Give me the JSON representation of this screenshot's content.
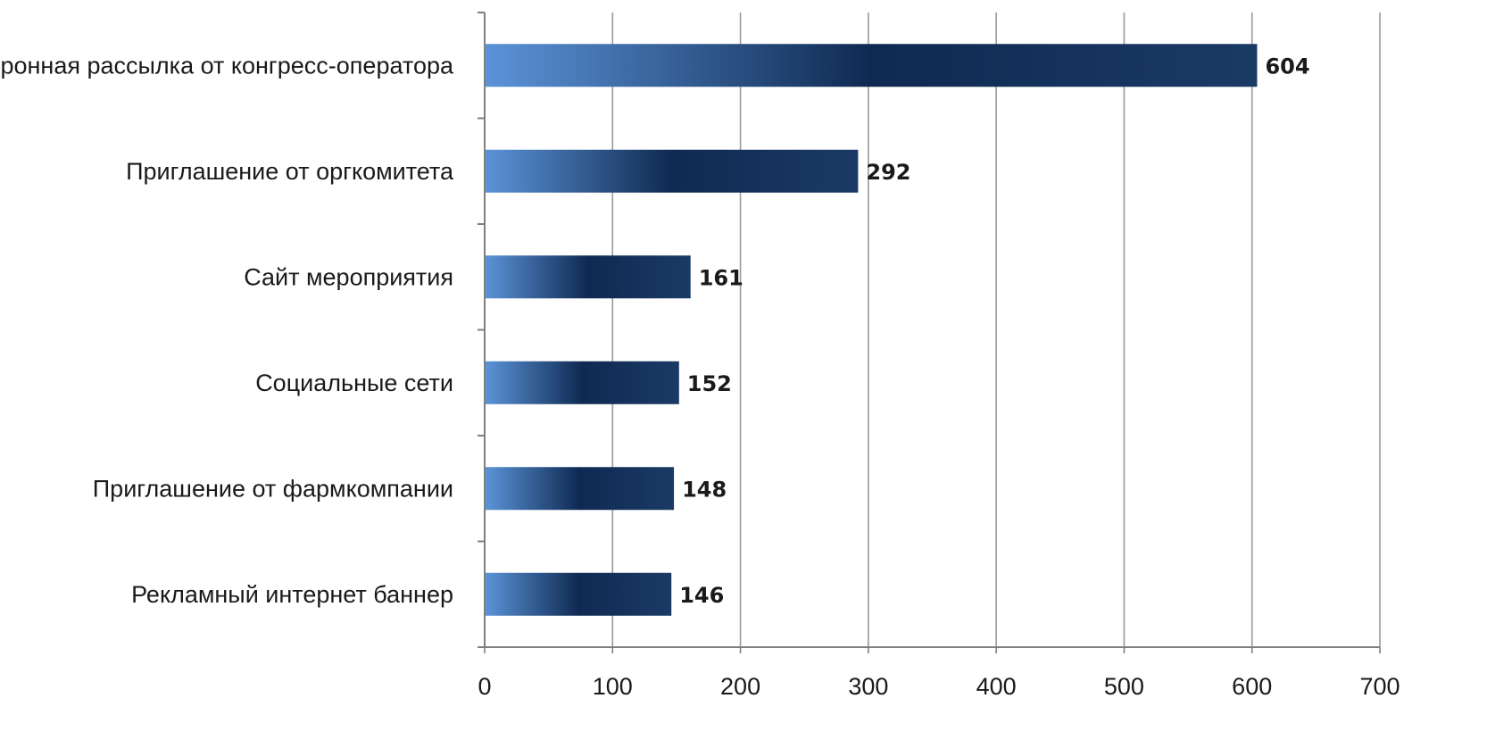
{
  "chart_data": {
    "type": "bar",
    "orientation": "horizontal",
    "title": "",
    "xlabel": "",
    "ylabel": "",
    "categories": [
      "Электронная рассылка от конгресс-оператора",
      "Приглашение от оргкомитета",
      "Сайт мероприятия",
      "Социальные сети",
      "Приглашение от фармкомпании",
      "Рекламный интернет баннер"
    ],
    "values": [
      604,
      292,
      161,
      152,
      148,
      146
    ],
    "value_labels": [
      "604",
      "292",
      "161",
      "152",
      "148",
      "146"
    ],
    "xlim": [
      0,
      700
    ],
    "x_ticks": [
      0,
      100,
      200,
      300,
      400,
      500,
      600,
      700
    ],
    "x_tick_labels": [
      "0",
      "100",
      "200",
      "300",
      "400",
      "500",
      "600",
      "700"
    ],
    "grid": "vertical",
    "legend": "none"
  },
  "colors": {
    "bar_gradient_start": "#5b93d8",
    "bar_gradient_mid": "#0f2a52",
    "bar_gradient_end": "#1a3a66",
    "grid": "#9a9a9a",
    "axis": "#7f7f7f",
    "text": "#1a1a1a"
  }
}
